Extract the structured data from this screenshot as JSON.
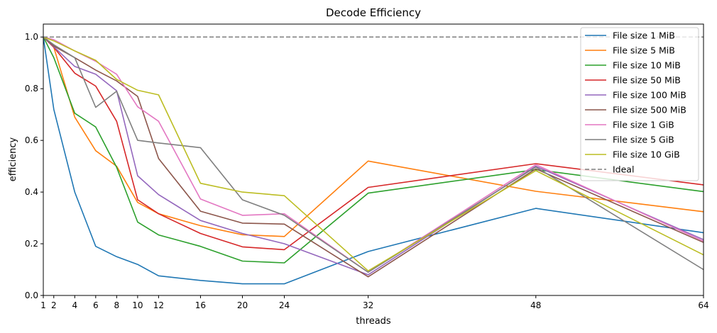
{
  "chart_data": {
    "type": "line",
    "title": "Decode Efficiency",
    "xlabel": "threads",
    "ylabel": "efficiency",
    "xlim": [
      1,
      64
    ],
    "ylim": [
      0,
      1.05
    ],
    "x": [
      1,
      2,
      4,
      6,
      8,
      10,
      12,
      16,
      20,
      24,
      32,
      48,
      64
    ],
    "xticks": [
      "1",
      "2",
      "4",
      "6",
      "8",
      "10",
      "12",
      "16",
      "20",
      "24",
      "32",
      "48",
      "64"
    ],
    "yticks": [
      "0.0",
      "0.2",
      "0.4",
      "0.6",
      "0.8",
      "1.0"
    ],
    "grid": false,
    "legend_position": "upper right",
    "series": [
      {
        "name": "File size 1 MiB",
        "color": "#1f77b4",
        "values": [
          1.0,
          0.72,
          0.4,
          0.19,
          0.15,
          0.12,
          0.076,
          0.058,
          0.045,
          0.045,
          0.17,
          0.337,
          0.243
        ]
      },
      {
        "name": "File size 5 MiB",
        "color": "#ff7f0e",
        "values": [
          1.0,
          0.96,
          0.69,
          0.56,
          0.5,
          0.36,
          0.316,
          0.27,
          0.235,
          0.228,
          0.52,
          0.403,
          0.324
        ]
      },
      {
        "name": "File size 10 MiB",
        "color": "#2ca02c",
        "values": [
          1.0,
          0.92,
          0.705,
          0.652,
          0.496,
          0.284,
          0.234,
          0.19,
          0.133,
          0.126,
          0.396,
          0.487,
          0.402
        ]
      },
      {
        "name": "File size 50 MiB",
        "color": "#d62728",
        "values": [
          1.0,
          0.96,
          0.86,
          0.81,
          0.674,
          0.37,
          0.316,
          0.24,
          0.188,
          0.177,
          0.418,
          0.51,
          0.428
        ]
      },
      {
        "name": "File size 100 MiB",
        "color": "#9467bd",
        "values": [
          1.0,
          0.962,
          0.886,
          0.856,
          0.792,
          0.463,
          0.39,
          0.29,
          0.24,
          0.2,
          0.08,
          0.5,
          0.216
        ]
      },
      {
        "name": "File size 500 MiB",
        "color": "#8c564b",
        "values": [
          1.0,
          0.965,
          0.92,
          0.872,
          0.83,
          0.77,
          0.53,
          0.326,
          0.28,
          0.276,
          0.072,
          0.49,
          0.205
        ]
      },
      {
        "name": "File size 1 GiB",
        "color": "#e377c2",
        "values": [
          1.0,
          0.99,
          0.946,
          0.906,
          0.856,
          0.73,
          0.674,
          0.373,
          0.31,
          0.316,
          0.09,
          0.506,
          0.21
        ]
      },
      {
        "name": "File size 5 GiB",
        "color": "#7f7f7f",
        "values": [
          1.0,
          0.97,
          0.92,
          0.728,
          0.79,
          0.6,
          0.59,
          0.572,
          0.37,
          0.31,
          0.09,
          0.497,
          0.1
        ]
      },
      {
        "name": "File size 10 GiB",
        "color": "#bcbd22",
        "values": [
          1.0,
          0.985,
          0.946,
          0.91,
          0.836,
          0.794,
          0.776,
          0.434,
          0.4,
          0.386,
          0.095,
          0.483,
          0.157
        ]
      }
    ],
    "reference_line": {
      "name": "Ideal",
      "y": 1.0,
      "color": "#7f7f7f",
      "style": "dashed"
    }
  }
}
